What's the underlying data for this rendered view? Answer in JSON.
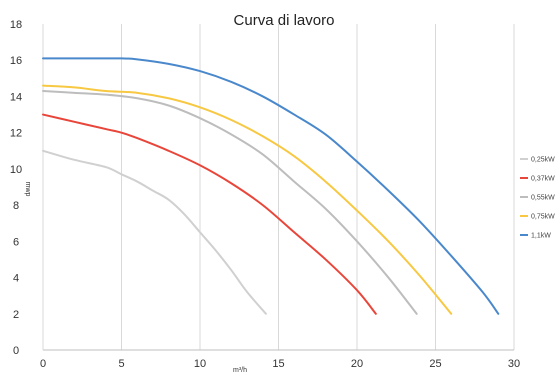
{
  "chart_data": {
    "type": "line",
    "title": "Curva di lavoro",
    "xlabel": "m³/h",
    "ylabel": "mwp",
    "xlim": [
      0,
      30
    ],
    "ylim": [
      0,
      18
    ],
    "x_ticks": [
      0,
      5,
      10,
      15,
      20,
      25,
      30
    ],
    "y_ticks": [
      0,
      2,
      4,
      6,
      8,
      10,
      12,
      14,
      16,
      18
    ],
    "grid": {
      "vertical": true,
      "horizontal": false
    },
    "legend_position": "right",
    "series": [
      {
        "name": "0,25kW",
        "color": "#d0d0d0",
        "x": [
          0,
          2,
          4,
          5,
          6,
          7,
          8,
          9,
          10,
          11,
          12,
          13,
          14.2
        ],
        "y": [
          11,
          10.5,
          10.1,
          9.7,
          9.3,
          8.8,
          8.3,
          7.5,
          6.5,
          5.5,
          4.4,
          3.2,
          2
        ]
      },
      {
        "name": "0,37kW",
        "color": "#e8463a",
        "x": [
          0,
          2,
          4,
          5,
          6,
          8,
          10,
          12,
          14,
          16,
          18,
          20,
          21.2
        ],
        "y": [
          13,
          12.6,
          12.2,
          12,
          11.7,
          11,
          10.2,
          9.2,
          8,
          6.5,
          5,
          3.3,
          2
        ]
      },
      {
        "name": "0,55kW",
        "color": "#bdbdbd",
        "x": [
          0,
          2,
          4,
          6,
          8,
          10,
          12,
          14,
          16,
          18,
          20,
          22,
          23.8
        ],
        "y": [
          14.3,
          14.2,
          14.1,
          13.9,
          13.5,
          12.8,
          11.9,
          10.8,
          9.3,
          7.8,
          6,
          4,
          2
        ]
      },
      {
        "name": "0,75kW",
        "color": "#f7c842",
        "x": [
          0,
          2,
          4,
          6,
          8,
          10,
          12,
          14,
          16,
          18,
          20,
          22,
          24,
          26
        ],
        "y": [
          14.6,
          14.5,
          14.3,
          14.2,
          13.9,
          13.4,
          12.7,
          11.8,
          10.7,
          9.3,
          7.7,
          6,
          4.1,
          2
        ]
      },
      {
        "name": "1,1kW",
        "color": "#4a88cc",
        "x": [
          0,
          2,
          4,
          5,
          6,
          8,
          10,
          12,
          14,
          16,
          18,
          20,
          22,
          24,
          26,
          28,
          29
        ],
        "y": [
          16.1,
          16.1,
          16.1,
          16.1,
          16.05,
          15.8,
          15.4,
          14.8,
          14,
          13,
          11.9,
          10.4,
          8.8,
          7.1,
          5.2,
          3.2,
          2
        ]
      }
    ]
  }
}
